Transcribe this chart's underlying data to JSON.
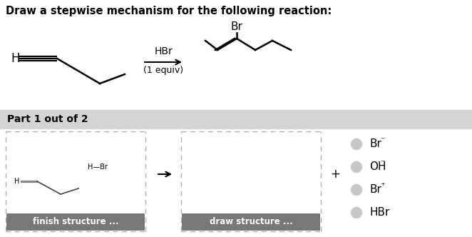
{
  "title": "Draw a stepwise mechanism for the following reaction:",
  "title_fontsize": 10.5,
  "title_fontweight": "bold",
  "bg_color": "#ffffff",
  "part_label": "Part 1 out of 2",
  "part_bg": "#d4d4d4",
  "reagent_top": "HBr",
  "reagent_bottom": "(1 equiv)",
  "finish_btn": "finish structure ...",
  "draw_btn": "draw structure ...",
  "btn_color": "#787878",
  "btn_text_color": "#ffffff",
  "dashed_border_color": "#b0b0b0",
  "plus_symbol": "+",
  "radio_circle_color": "#c8c8c8",
  "radio_border_color": "#a0a0a0",
  "base_texts": [
    "Br",
    "OH",
    "Br",
    "HBr"
  ],
  "sup_texts": [
    "⁻",
    "⁻",
    "⁺",
    ""
  ],
  "radio_fontsize": 11,
  "figw": 6.62,
  "figh": 3.32,
  "dpi": 100
}
